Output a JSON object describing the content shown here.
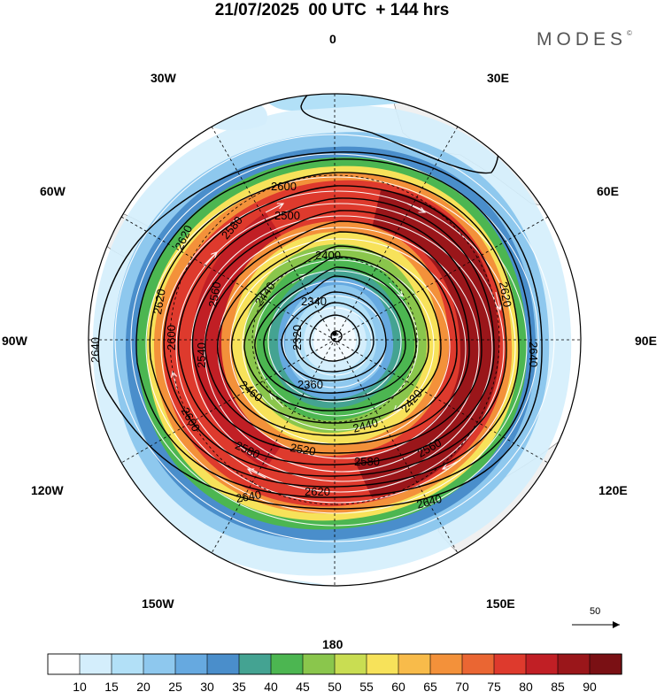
{
  "title": "21/07/2025  00 UTC  + 144 hrs",
  "brand": "MODES",
  "brand_mark": "©",
  "longitude_labels": {
    "lon_0": "0",
    "lon_30e": "30E",
    "lon_60e": "60E",
    "lon_90e": "90E",
    "lon_120e": "120E",
    "lon_150e": "150E",
    "lon_180": "180",
    "lon_150w": "150W",
    "lon_120w": "120W",
    "lon_90w": "90W",
    "lon_60w": "60W",
    "lon_30w": "30W"
  },
  "contour_labels": {
    "c2660": "2660",
    "c2600a": "2600",
    "c2620a": "2620",
    "c2620b": "2620",
    "c2580a": "2580",
    "c2560a": "2560",
    "c2500a": "2500",
    "c2400a": "2400",
    "c2440a": "2440",
    "c2340a": "2340",
    "c2320a": "2320",
    "c2360a": "2360",
    "c2640w": "2640",
    "c2600w": "2600",
    "c2540w": "2540",
    "c2600sw": "2600",
    "c2460a": "2460",
    "c2420a": "2420",
    "c2440b": "2440",
    "c2520a": "2520",
    "c2580b": "2580",
    "c2580c": "2580",
    "c2560b": "2560",
    "c2640s1": "2640",
    "c2620s": "2620",
    "c2640s2": "2640",
    "c2620e": "2620",
    "c2640e": "2640"
  },
  "vector_reference": {
    "label": "50"
  },
  "colorbar": {
    "ticks": [
      "10",
      "15",
      "20",
      "25",
      "30",
      "35",
      "40",
      "45",
      "50",
      "55",
      "60",
      "65",
      "70",
      "75",
      "80",
      "85",
      "90"
    ],
    "colors": [
      "#ffffff",
      "#d4eefc",
      "#b2e0f7",
      "#8ec8ee",
      "#66a9e0",
      "#4a8ecb",
      "#44a392",
      "#4cb651",
      "#8ac64c",
      "#c9dd52",
      "#f7e25a",
      "#f8bb4a",
      "#f3913a",
      "#ea6633",
      "#de3a2d",
      "#c11f25",
      "#9a161a",
      "#7a1014"
    ]
  },
  "wind_colors": {
    "ws10": "#d4eefc",
    "ws15": "#b2e0f7",
    "ws20": "#8ec8ee",
    "ws25": "#66a9e0",
    "ws30": "#4a8ecb",
    "ws35": "#44a392",
    "ws40": "#4cb651",
    "ws45": "#8ac64c",
    "ws50": "#c9dd52",
    "ws55": "#f7e25a",
    "ws60": "#f8bb4a",
    "ws65": "#f3913a",
    "ws70": "#ea6633",
    "ws75": "#de3a2d",
    "ws80": "#c11f25",
    "ws85": "#9a161a",
    "land": "#f0f0f0"
  }
}
